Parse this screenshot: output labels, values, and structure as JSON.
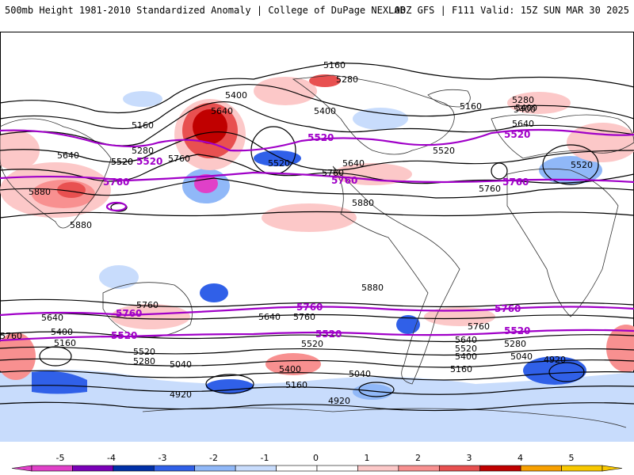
{
  "header": {
    "title": "500mb Height 1981-2010 Standardized Anomaly | College of DuPage NEXLAB",
    "run": "00Z GFS | F111 Valid: 15Z SUN MAR 30 2025"
  },
  "contour_labels": [
    "5160",
    "5280",
    "5400",
    "5400",
    "5640",
    "5160",
    "5280",
    "5640",
    "5520",
    "5520",
    "5880",
    "5880",
    "5760",
    "5400",
    "5520",
    "5640",
    "5760",
    "5880",
    "5160",
    "5280",
    "5400",
    "5640",
    "5520",
    "5760",
    "5520",
    "5880",
    "5760",
    "5640",
    "5400",
    "5160",
    "5760",
    "5640",
    "5760",
    "5520",
    "5280",
    "5040",
    "5400",
    "4920",
    "5040",
    "5160",
    "4920",
    "5520",
    "5640",
    "5520",
    "5400",
    "5280",
    "5160",
    "5040",
    "4920",
    "5760"
  ],
  "highlight_labels": [
    "5520",
    "5520",
    "5760",
    "5760",
    "5520",
    "5760",
    "5760",
    "5520",
    "5760",
    "5760",
    "5520",
    "5520"
  ],
  "legend": {
    "ticks": [
      "-5",
      "-4",
      "-3",
      "-2",
      "-1",
      "0",
      "1",
      "2",
      "3",
      "4",
      "5"
    ],
    "colors": [
      "#e040c8",
      "#7a00b8",
      "#0030a8",
      "#3060e8",
      "#90b8f8",
      "#c8dcfc",
      "#ffffff",
      "#ffffff",
      "#fcc8c8",
      "#f89090",
      "#e85050",
      "#c00000",
      "#f8a000",
      "#f8c800"
    ]
  }
}
